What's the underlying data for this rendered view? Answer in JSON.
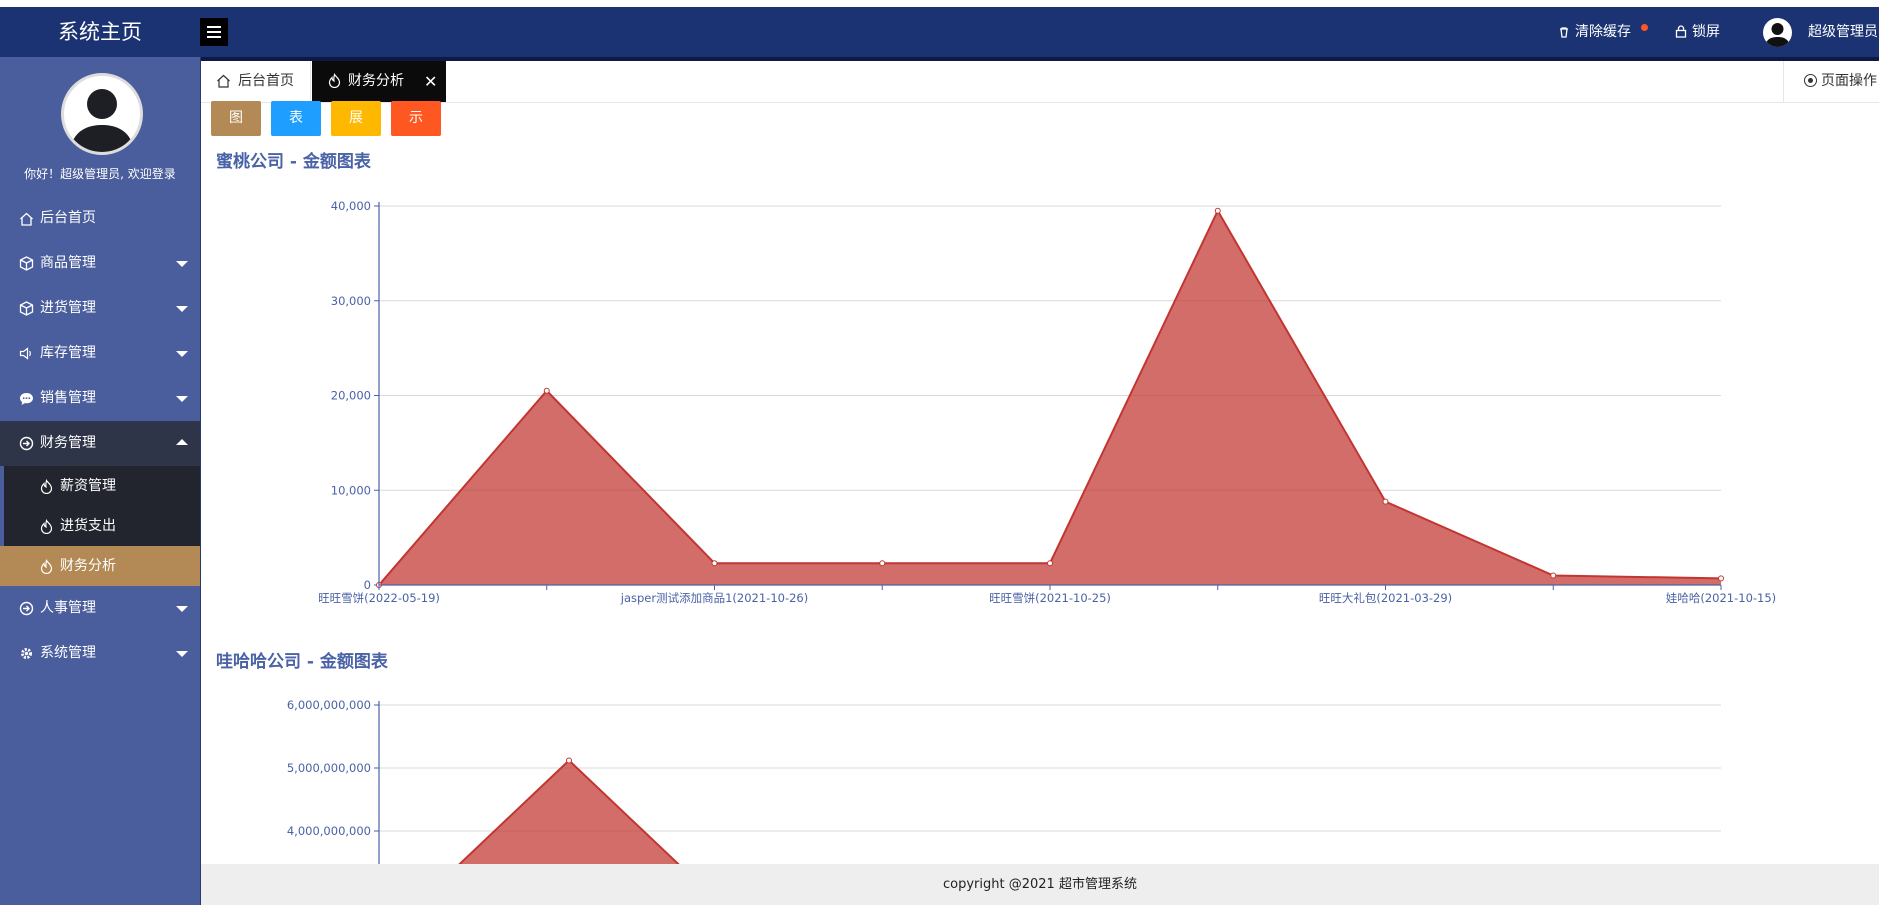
{
  "header": {
    "brand": "系统主页",
    "clear_cache": "清除缓存",
    "lock_screen": "锁屏",
    "user_name": "超级管理员"
  },
  "sidebar": {
    "welcome": "你好！超级管理员, 欢迎登录",
    "items": [
      {
        "label": "后台首页",
        "icon": "home-icon"
      },
      {
        "label": "商品管理",
        "icon": "cube-icon"
      },
      {
        "label": "进货管理",
        "icon": "cube-icon"
      },
      {
        "label": "库存管理",
        "icon": "speaker-icon"
      },
      {
        "label": "销售管理",
        "icon": "chat-icon"
      },
      {
        "label": "财务管理",
        "icon": "finance-icon"
      },
      {
        "label": "人事管理",
        "icon": "finance-icon"
      },
      {
        "label": "系统管理",
        "icon": "gear-icon"
      }
    ],
    "finance_sub": [
      {
        "label": "薪资管理",
        "icon": "fire-icon"
      },
      {
        "label": "进货支出",
        "icon": "fire-icon"
      },
      {
        "label": "财务分析",
        "icon": "fire-icon"
      }
    ]
  },
  "tabs": {
    "home": "后台首页",
    "active": "财务分析",
    "close_glyph": "✕",
    "page_ops": "页面操作"
  },
  "chips": [
    "图",
    "表",
    "展",
    "示"
  ],
  "chart_data": [
    {
      "type": "area",
      "title": "蜜桃公司 - 金额图表",
      "x": [
        "旺旺雪饼(2022-05-19)",
        "",
        "jasper测试添加商品1(2021-10-26)",
        "",
        "旺旺雪饼(2021-10-25)",
        "",
        "旺旺大礼包(2021-03-29)",
        "",
        "娃哈哈(2021-10-15)"
      ],
      "x_labels_shown": [
        "旺旺雪饼(2022-05-19)",
        "jasper测试添加商品1(2021-10-26)",
        "旺旺雪饼(2021-10-25)",
        "旺旺大礼包(2021-03-29)",
        "娃哈哈(2021-10-15)"
      ],
      "values": [
        0,
        20500,
        2300,
        2300,
        2300,
        39500,
        8800,
        1000,
        700
      ],
      "yticks": [
        "0",
        "10,000",
        "20,000",
        "30,000",
        "40,000"
      ],
      "ylim": [
        0,
        40000
      ],
      "grid": true,
      "color": "#c23531"
    },
    {
      "type": "area",
      "title": "哇哈哈公司 - 金额图表",
      "yticks": [
        "6,000,000,000",
        "5,000,000,000",
        "4,000,000,000"
      ],
      "visible_ylim": [
        4000000000,
        6000000000
      ],
      "values_partial": [
        null,
        5120000000
      ],
      "grid": true,
      "color": "#c23531"
    }
  ],
  "footer": "copyright @2021 超市管理系统"
}
